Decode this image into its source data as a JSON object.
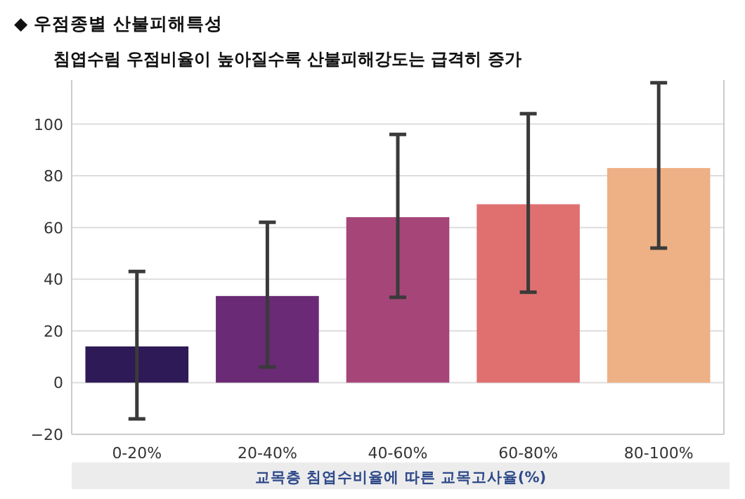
{
  "chart_data": {
    "type": "bar",
    "title": "◆ 우점종별 산불피해특성",
    "subtitle": "침엽수림 우점비율이 높아질수록 산불피해강도는 급격히 증가",
    "xlabel": "교목층 침엽수비율에 따른 교목고사율(%)",
    "categories": [
      "0-20%",
      "20-40%",
      "40-60%",
      "60-80%",
      "80-100%"
    ],
    "values": [
      14,
      33.5,
      64,
      69,
      83
    ],
    "errors": [
      [
        -14,
        43
      ],
      [
        6,
        62
      ],
      [
        33,
        96
      ],
      [
        35,
        104
      ],
      [
        52,
        116
      ]
    ],
    "colors": [
      "#2d1a56",
      "#6a2a75",
      "#a64678",
      "#e07070",
      "#eeb085"
    ],
    "ylim": [
      -20,
      117
    ],
    "yticks": [
      {
        "value": -20,
        "label": "−20"
      },
      0,
      20,
      40,
      60,
      80,
      100
    ],
    "grid": "y"
  }
}
